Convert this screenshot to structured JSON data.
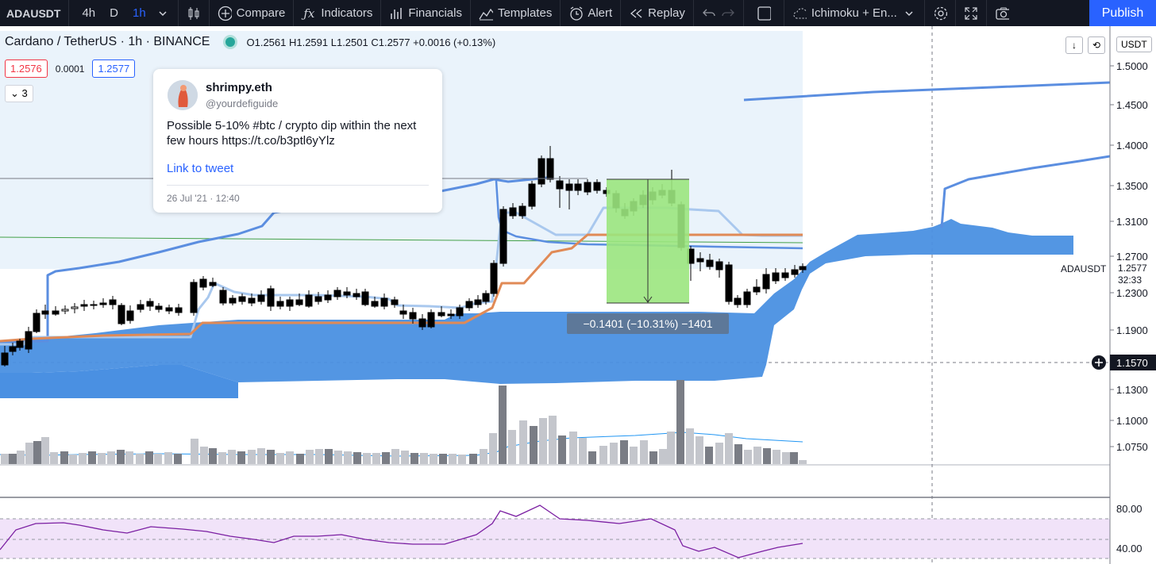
{
  "toolbar": {
    "symbol": "ADAUSDT",
    "timeframes": [
      "4h",
      "D",
      "1h"
    ],
    "active_timeframe": "1h",
    "compare": "Compare",
    "indicators": "Indicators",
    "financials": "Financials",
    "templates": "Templates",
    "alert": "Alert",
    "replay": "Replay",
    "layout_name": "Ichimoku + En...",
    "publish": "Publish"
  },
  "legend": {
    "title": "Cardano / TetherUS · 1h · BINANCE",
    "ohlc": "O1.2561  H1.2591  L1.2501  C1.2577  +0.0016 (+0.13%)",
    "bid": "1.2576",
    "spread": "0.0001",
    "ask": "1.2577",
    "collapse_count": "3"
  },
  "tweet": {
    "username": "shrimpy.eth",
    "handle": "@yourdefiguide",
    "text": "Possible 5-10% #btc / crypto dip within the next few hours https://t.co/b3ptl6yYlz",
    "link": "Link to tweet",
    "date": "26 Jul '21 · 12:40"
  },
  "price_scale": {
    "currency": "USDT",
    "ticks": [
      "1.5000",
      "1.4500",
      "1.4000",
      "1.3500",
      "1.3100",
      "1.2700",
      "1.2300",
      "1.1900",
      "1.1300",
      "1.1000",
      "1.0750"
    ],
    "crosshair_price": "1.1570",
    "last_symbol": "ADAUSDT",
    "last_price": "1.2577",
    "countdown": "32:33"
  },
  "rsi_scale": {
    "ticks": [
      "80.00",
      "40.00"
    ]
  },
  "measure": {
    "label": "−0.1401 (−10.31%) −1401"
  },
  "colors": {
    "up": "#ffffff",
    "down": "#000000",
    "cloud": "#4a90e2",
    "kijun": "#e08a56",
    "tenkan": "#a9c8ee",
    "span": "#5b8ee0",
    "measure_fill": "#9be67e",
    "rsi_line": "#7b1fa2",
    "rsi_band": "#f1e3f9",
    "accent": "#2962ff"
  }
}
